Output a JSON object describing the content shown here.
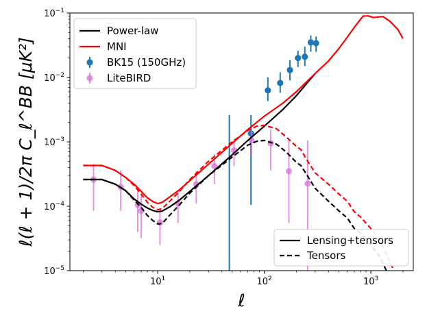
{
  "chart_data": {
    "type": "line",
    "x_scale": "log",
    "y_scale": "log",
    "xlim": [
      1.5,
      2500
    ],
    "ylim": [
      1e-05,
      0.1
    ],
    "xlabel": "ℓ",
    "ylabel": "ℓ(ℓ + 1)/2π C_ℓ^BB [μK²]",
    "x_ticks": [
      {
        "value": 10,
        "base": "10",
        "exp": "1"
      },
      {
        "value": 100,
        "base": "10",
        "exp": "2"
      },
      {
        "value": 1000,
        "base": "10",
        "exp": "3"
      }
    ],
    "y_ticks": [
      {
        "value": 1e-05,
        "base": "10",
        "exp": "−5"
      },
      {
        "value": 0.0001,
        "base": "10",
        "exp": "−4"
      },
      {
        "value": 0.001,
        "base": "10",
        "exp": "−3"
      },
      {
        "value": 0.01,
        "base": "10",
        "exp": "−2"
      },
      {
        "value": 0.1,
        "base": "10",
        "exp": "−1"
      }
    ],
    "legend_upper": {
      "placement": "top-left",
      "entries": [
        "Power-law",
        "MNI",
        "BK15 (150GHz)",
        "LiteBIRD"
      ]
    },
    "legend_lower": {
      "placement": "bottom-right",
      "entries": [
        "Lensing+tensors",
        "Tensors"
      ]
    },
    "series": [
      {
        "name": "Power-law",
        "style": "solid",
        "color": "#000000",
        "kind": "line",
        "points": [
          [
            2,
            0.00026
          ],
          [
            3,
            0.00026
          ],
          [
            4,
            0.00022
          ],
          [
            5,
            0.000175
          ],
          [
            6,
            0.00013
          ],
          [
            7,
            0.000108
          ],
          [
            8,
            9.4e-05
          ],
          [
            9,
            8.6e-05
          ],
          [
            10,
            8.2e-05
          ],
          [
            11,
            8.4e-05
          ],
          [
            13,
            9.8e-05
          ],
          [
            16,
            0.000125
          ],
          [
            20,
            0.00017
          ],
          [
            30,
            0.0003
          ],
          [
            50,
            0.00063
          ],
          [
            70,
            0.00105
          ],
          [
            100,
            0.00175
          ],
          [
            150,
            0.0032
          ],
          [
            200,
            0.0052
          ],
          [
            300,
            0.0115
          ]
        ]
      },
      {
        "name": "Power-law",
        "style": "dashed",
        "color": "#000000",
        "kind": "line",
        "points": [
          [
            2,
            0.00026
          ],
          [
            3,
            0.00026
          ],
          [
            4,
            0.00022
          ],
          [
            5,
            0.000175
          ],
          [
            6,
            0.000125
          ],
          [
            7,
            9.6e-05
          ],
          [
            8,
            7.2e-05
          ],
          [
            9,
            6e-05
          ],
          [
            10,
            5.3e-05
          ],
          [
            11,
            5.4e-05
          ],
          [
            13,
            7.3e-05
          ],
          [
            16,
            0.000105
          ],
          [
            20,
            0.00016
          ],
          [
            30,
            0.0003
          ],
          [
            50,
            0.00058
          ],
          [
            70,
            0.00089
          ],
          [
            85,
            0.00102
          ],
          [
            100,
            0.00105
          ],
          [
            130,
            0.00092
          ],
          [
            160,
            0.0007
          ],
          [
            200,
            0.00048
          ],
          [
            220,
            0.00043
          ],
          [
            250,
            0.00031
          ],
          [
            300,
            0.00019
          ],
          [
            400,
            0.00012
          ],
          [
            500,
            8.5e-05
          ],
          [
            600,
            6.6e-05
          ],
          [
            700,
            4.5e-05
          ],
          [
            800,
            3.8e-05
          ],
          [
            1000,
            2.5e-05
          ],
          [
            1200,
            1.7e-05
          ],
          [
            1400,
            1e-05
          ]
        ]
      },
      {
        "name": "MNI",
        "style": "solid",
        "color": "#ff0000",
        "kind": "line",
        "points": [
          [
            2,
            0.00043
          ],
          [
            3,
            0.00043
          ],
          [
            4,
            0.00036
          ],
          [
            5,
            0.00028
          ],
          [
            6,
            0.00022
          ],
          [
            7,
            0.00017
          ],
          [
            8,
            0.000135
          ],
          [
            9,
            0.000118
          ],
          [
            10,
            0.00011
          ],
          [
            11,
            0.000115
          ],
          [
            13,
            0.00014
          ],
          [
            16,
            0.00018
          ],
          [
            20,
            0.00025
          ],
          [
            30,
            0.00045
          ],
          [
            50,
            0.00095
          ],
          [
            70,
            0.00155
          ],
          [
            100,
            0.0025
          ],
          [
            150,
            0.004
          ],
          [
            200,
            0.006
          ],
          [
            300,
            0.0115
          ],
          [
            400,
            0.018
          ],
          [
            500,
            0.028
          ],
          [
            600,
            0.042
          ],
          [
            700,
            0.06
          ],
          [
            800,
            0.08
          ],
          [
            850,
            0.09
          ],
          [
            950,
            0.09
          ],
          [
            1050,
            0.085
          ],
          [
            1200,
            0.087
          ],
          [
            1300,
            0.088
          ],
          [
            1500,
            0.075
          ],
          [
            1800,
            0.055
          ],
          [
            2000,
            0.04
          ]
        ]
      },
      {
        "name": "MNI",
        "style": "dashed",
        "color": "#ff0000",
        "kind": "line",
        "points": [
          [
            2,
            0.00043
          ],
          [
            3,
            0.00043
          ],
          [
            4,
            0.00036
          ],
          [
            5,
            0.00028
          ],
          [
            6,
            0.00021
          ],
          [
            7,
            0.000155
          ],
          [
            8,
            0.000115
          ],
          [
            9,
            9.6e-05
          ],
          [
            10,
            8.8e-05
          ],
          [
            11,
            9.2e-05
          ],
          [
            13,
            0.00012
          ],
          [
            16,
            0.00017
          ],
          [
            20,
            0.00026
          ],
          [
            30,
            0.0005
          ],
          [
            50,
            0.001
          ],
          [
            70,
            0.0015
          ],
          [
            85,
            0.00175
          ],
          [
            100,
            0.0018
          ],
          [
            130,
            0.0016
          ],
          [
            160,
            0.0012
          ],
          [
            200,
            0.00085
          ],
          [
            220,
            0.00076
          ],
          [
            250,
            0.00053
          ],
          [
            300,
            0.00033
          ],
          [
            400,
            0.00022
          ],
          [
            500,
            0.000155
          ],
          [
            600,
            0.00012
          ],
          [
            700,
            8.2e-05
          ],
          [
            800,
            6.8e-05
          ],
          [
            1000,
            4.5e-05
          ],
          [
            1200,
            3e-05
          ],
          [
            1400,
            1.8e-05
          ],
          [
            1600,
            1.1e-05
          ]
        ]
      },
      {
        "name": "BK15 (150GHz)",
        "kind": "errorbar",
        "color": "#1f77b4",
        "points": [
          {
            "x": 47,
            "y": null,
            "lo": 1e-05,
            "hi": 0.0026
          },
          {
            "x": 75,
            "y": 0.00135,
            "lo": 0.000105,
            "hi": 0.0026
          },
          {
            "x": 108,
            "y": 0.0063,
            "lo": 0.0043,
            "hi": 0.01
          },
          {
            "x": 141,
            "y": 0.0082,
            "lo": 0.0058,
            "hi": 0.012
          },
          {
            "x": 174,
            "y": 0.013,
            "lo": 0.009,
            "hi": 0.0185
          },
          {
            "x": 207,
            "y": 0.02,
            "lo": 0.0145,
            "hi": 0.026
          },
          {
            "x": 240,
            "y": 0.021,
            "lo": 0.015,
            "hi": 0.03
          },
          {
            "x": 273,
            "y": 0.035,
            "lo": 0.025,
            "hi": 0.045
          },
          {
            "x": 306,
            "y": 0.034,
            "lo": 0.025,
            "hi": 0.043
          }
        ]
      },
      {
        "name": "LiteBIRD",
        "kind": "errorbar",
        "color": "#da70d6",
        "points": [
          {
            "x": 2.5,
            "y": 0.00026,
            "lo": 8.5e-05,
            "hi": 0.00045
          },
          {
            "x": 4.5,
            "y": 0.0002,
            "lo": 8.5e-05,
            "hi": 0.00036
          },
          {
            "x": 6.5,
            "y": 0.000105,
            "lo": 4e-05,
            "hi": 0.000175
          },
          {
            "x": 7.0,
            "y": 8.5e-05,
            "lo": 3.2e-05,
            "hi": 0.00015
          },
          {
            "x": 10.5,
            "y": 5.6e-05,
            "lo": 2.5e-05,
            "hi": 9e-05
          },
          {
            "x": 15.5,
            "y": 0.00011,
            "lo": 5.5e-05,
            "hi": 0.00017
          },
          {
            "x": 23,
            "y": 0.00022,
            "lo": 0.00011,
            "hi": 0.00035
          },
          {
            "x": 34,
            "y": 0.00042,
            "lo": 0.00022,
            "hi": 0.00065
          },
          {
            "x": 52,
            "y": 0.00074,
            "lo": 0.00042,
            "hi": 0.0011
          },
          {
            "x": 76,
            "y": 0.00105,
            "lo": 0.0006,
            "hi": 0.0015
          },
          {
            "x": 115,
            "y": 0.00095,
            "lo": 0.00036,
            "hi": 0.00155
          },
          {
            "x": 170,
            "y": 0.00035,
            "lo": 5.5e-05,
            "hi": 0.00105
          },
          {
            "x": 255,
            "y": 0.000225,
            "lo": 1e-05,
            "hi": 0.00105
          }
        ]
      }
    ]
  }
}
